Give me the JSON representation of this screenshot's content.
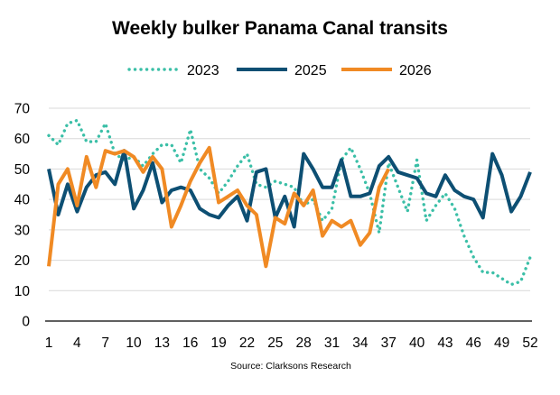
{
  "chart_data": {
    "type": "line",
    "title": "Weekly bulker Panama Canal transits",
    "source": "Source: Clarksons Research",
    "xlabel": "",
    "ylabel": "",
    "ylim": [
      0,
      70
    ],
    "yticks": [
      0,
      10,
      20,
      30,
      40,
      50,
      60,
      70
    ],
    "xlim": [
      1,
      52
    ],
    "xticks": [
      1,
      4,
      7,
      10,
      13,
      16,
      19,
      22,
      25,
      28,
      31,
      34,
      37,
      40,
      43,
      46,
      49,
      52
    ],
    "grid": true,
    "legend_position": "top",
    "series": [
      {
        "name": "2023",
        "color": "#3bbfa7",
        "style": "dotted",
        "x": [
          1,
          2,
          3,
          4,
          5,
          6,
          7,
          8,
          9,
          10,
          11,
          12,
          13,
          14,
          15,
          16,
          17,
          18,
          19,
          20,
          21,
          22,
          23,
          24,
          25,
          26,
          27,
          28,
          29,
          30,
          31,
          32,
          33,
          34,
          35,
          36,
          37,
          38,
          39,
          40,
          41,
          42,
          43,
          44,
          45,
          46,
          47,
          48,
          49,
          50,
          51,
          52
        ],
        "values": [
          61,
          58,
          65,
          66,
          59,
          59,
          65,
          55,
          53,
          54,
          51,
          55,
          58,
          58,
          52,
          63,
          50,
          47,
          42,
          46,
          51,
          55,
          45,
          44,
          46,
          45,
          44,
          38,
          40,
          33,
          37,
          53,
          57,
          50,
          42,
          29,
          52,
          44,
          36,
          53,
          33,
          38,
          42,
          37,
          28,
          21,
          16,
          16,
          14,
          12,
          13,
          21
        ]
      },
      {
        "name": "2025",
        "color": "#0d4f73",
        "style": "solid",
        "x": [
          1,
          2,
          3,
          4,
          5,
          6,
          7,
          8,
          9,
          10,
          11,
          12,
          13,
          14,
          15,
          16,
          17,
          18,
          19,
          20,
          21,
          22,
          23,
          24,
          25,
          26,
          27,
          28,
          29,
          30,
          31,
          32,
          33,
          34,
          35,
          36,
          37,
          38,
          39,
          40,
          41,
          42,
          43,
          44,
          45,
          46,
          47,
          48,
          49,
          50,
          51,
          52
        ],
        "values": [
          50,
          35,
          45,
          36,
          44,
          48,
          49,
          45,
          56,
          37,
          43,
          52,
          39,
          43,
          44,
          43,
          37,
          35,
          34,
          38,
          41,
          33,
          49,
          50,
          34,
          41,
          31,
          55,
          50,
          44,
          44,
          53,
          41,
          41,
          42,
          51,
          54,
          49,
          48,
          47,
          42,
          41,
          48,
          43,
          41,
          40,
          34,
          55,
          48,
          36,
          41,
          49
        ]
      },
      {
        "name": "2026",
        "color": "#f08a24",
        "style": "solid",
        "x": [
          1,
          2,
          3,
          4,
          5,
          6,
          7,
          8,
          9,
          10,
          11,
          12,
          13,
          14,
          15,
          16,
          17,
          18,
          19,
          20,
          21,
          22,
          23,
          24,
          25,
          26,
          27,
          28,
          29,
          30,
          31,
          32,
          33,
          34,
          35,
          36,
          37
        ],
        "values": [
          18,
          45,
          50,
          38,
          54,
          44,
          56,
          55,
          56,
          54,
          49,
          54,
          50,
          31,
          38,
          46,
          52,
          57,
          39,
          41,
          43,
          38,
          35,
          18,
          34,
          32,
          42,
          38,
          43,
          28,
          33,
          31,
          33,
          25,
          29,
          44,
          50
        ]
      }
    ]
  }
}
